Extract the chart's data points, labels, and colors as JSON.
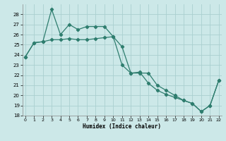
{
  "line1_x": [
    0,
    1,
    2,
    3,
    4,
    5,
    6,
    7,
    8,
    9,
    10,
    11,
    12,
    13,
    14,
    15,
    16,
    17,
    18,
    19,
    20,
    21,
    22
  ],
  "line1_y": [
    23.8,
    25.2,
    25.3,
    28.5,
    26.0,
    27.0,
    26.5,
    26.8,
    26.8,
    26.8,
    25.8,
    24.8,
    22.2,
    22.2,
    22.2,
    21.0,
    20.5,
    20.0,
    19.5,
    19.2,
    18.4,
    19.0,
    21.5
  ],
  "line2_x": [
    0,
    1,
    2,
    3,
    4,
    5,
    6,
    7,
    8,
    9,
    10,
    11,
    12,
    13,
    14,
    15,
    16,
    17,
    18,
    19,
    20,
    21,
    22
  ],
  "line2_y": [
    23.8,
    25.2,
    25.3,
    25.5,
    25.5,
    25.6,
    25.5,
    25.5,
    25.6,
    25.7,
    25.8,
    23.0,
    22.2,
    22.3,
    21.2,
    20.5,
    20.1,
    19.8,
    19.5,
    19.2,
    18.4,
    19.0,
    21.5
  ],
  "color": "#2e7d6e",
  "bg_color": "#cce8e8",
  "grid_color": "#aad0d0",
  "xlabel": "Humidex (Indice chaleur)",
  "ylim": [
    18,
    29
  ],
  "xlim": [
    -0.3,
    22.3
  ],
  "yticks": [
    18,
    19,
    20,
    21,
    22,
    23,
    24,
    25,
    26,
    27,
    28
  ],
  "xticks": [
    0,
    1,
    2,
    3,
    4,
    5,
    6,
    7,
    8,
    9,
    10,
    11,
    12,
    13,
    14,
    15,
    16,
    17,
    18,
    19,
    20,
    21,
    22
  ],
  "marker": "D",
  "markersize": 2.2,
  "linewidth": 0.9
}
